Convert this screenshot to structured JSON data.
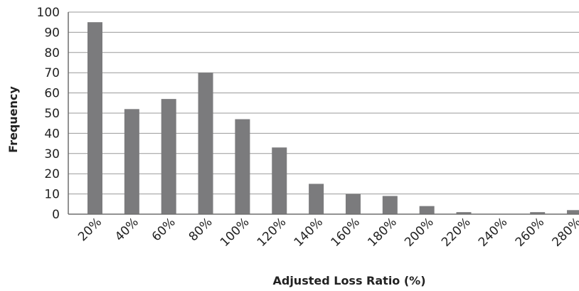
{
  "chart_data": {
    "type": "bar",
    "title": "",
    "xlabel": "Adjusted Loss Ratio (%)",
    "ylabel": "Frequency",
    "categories": [
      "20%",
      "40%",
      "60%",
      "80%",
      "100%",
      "120%",
      "140%",
      "160%",
      "180%",
      "200%",
      "220%",
      "240%",
      "260%",
      "280%"
    ],
    "values": [
      95,
      52,
      57,
      70,
      47,
      33,
      15,
      10,
      9,
      4,
      1,
      0,
      1,
      2
    ],
    "ylim": [
      0,
      100
    ],
    "yticks": [
      "0",
      "10",
      "20",
      "30",
      "40",
      "50",
      "60",
      "70",
      "80",
      "90",
      "100"
    ],
    "grid": true,
    "legend": "none",
    "bar_color": "#7b7b7d",
    "grid_color": "#9a9a9a"
  }
}
